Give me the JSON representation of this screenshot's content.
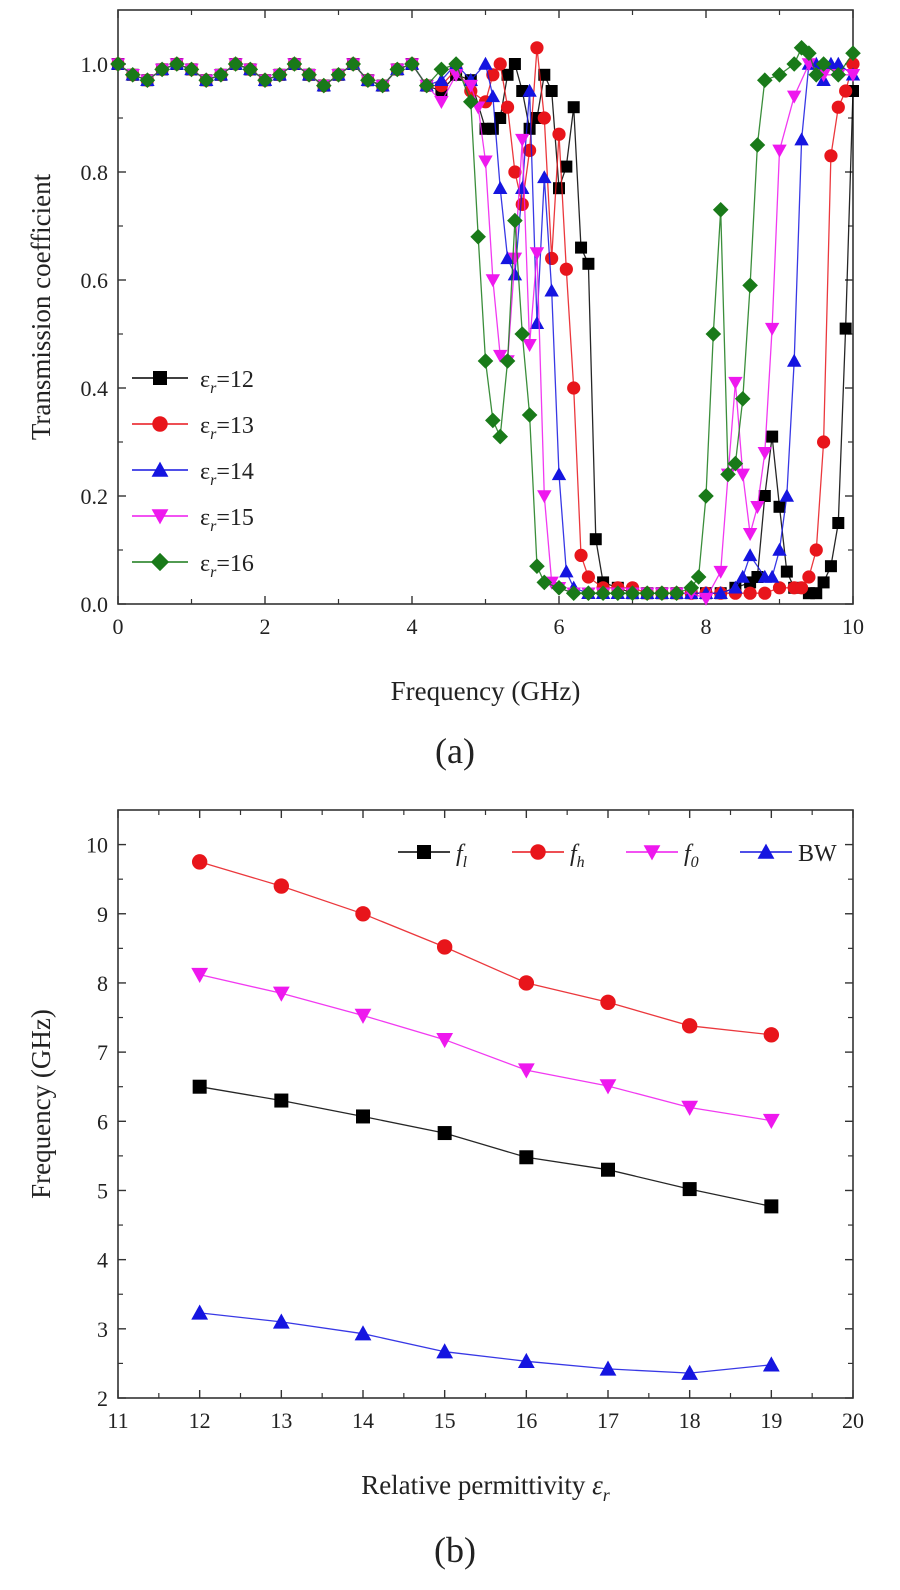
{
  "chart_data": [
    {
      "type": "line",
      "panel_label": "(a)",
      "xlabel": "Frequency (GHz)",
      "ylabel": "Transmission coefficient",
      "xlim": [
        0,
        10
      ],
      "ylim": [
        0,
        1.1
      ],
      "xticks": [
        0,
        2,
        4,
        6,
        8,
        10
      ],
      "yticks": [
        0.0,
        0.2,
        0.4,
        0.6,
        0.8,
        1.0
      ],
      "xtick_labels": [
        "0",
        "2",
        "4",
        "6",
        "8",
        "10"
      ],
      "ytick_labels": [
        "0.0",
        "0.2",
        "0.4",
        "0.6",
        "0.8",
        "1.0"
      ],
      "grid": false,
      "legend_position": "lower-left",
      "series": [
        {
          "name": "εr=12",
          "name_base": "ε",
          "name_sub": "r",
          "name_rest": "=12",
          "color": "#000000",
          "marker": "square",
          "x": [
            0,
            0.2,
            0.4,
            0.6,
            0.8,
            1.0,
            1.2,
            1.4,
            1.6,
            1.8,
            2.0,
            2.2,
            2.4,
            2.6,
            2.8,
            3.0,
            3.2,
            3.4,
            3.6,
            3.8,
            4.0,
            4.2,
            4.4,
            4.6,
            4.8,
            5.0,
            5.1,
            5.2,
            5.3,
            5.4,
            5.5,
            5.6,
            5.7,
            5.8,
            5.9,
            6.0,
            6.1,
            6.2,
            6.3,
            6.4,
            6.5,
            6.6,
            6.8,
            7.0,
            7.2,
            7.4,
            7.6,
            7.8,
            8.0,
            8.2,
            8.4,
            8.6,
            8.7,
            8.8,
            8.9,
            9.0,
            9.1,
            9.2,
            9.4,
            9.5,
            9.6,
            9.7,
            9.8,
            9.9,
            10.0
          ],
          "y": [
            1.0,
            0.98,
            0.97,
            0.99,
            1.0,
            0.99,
            0.97,
            0.98,
            1.0,
            0.99,
            0.97,
            0.98,
            1.0,
            0.98,
            0.96,
            0.98,
            1.0,
            0.97,
            0.96,
            0.99,
            1.0,
            0.96,
            0.95,
            0.98,
            0.97,
            0.88,
            0.88,
            0.9,
            0.98,
            1.0,
            0.95,
            0.88,
            0.9,
            0.98,
            0.95,
            0.77,
            0.81,
            0.92,
            0.66,
            0.63,
            0.12,
            0.04,
            0.03,
            0.02,
            0.02,
            0.02,
            0.02,
            0.02,
            0.02,
            0.02,
            0.03,
            0.04,
            0.05,
            0.2,
            0.31,
            0.18,
            0.06,
            0.03,
            0.02,
            0.02,
            0.04,
            0.07,
            0.15,
            0.51,
            0.95
          ]
        },
        {
          "name": "εr=13",
          "name_base": "ε",
          "name_sub": "r",
          "name_rest": "=13",
          "color": "#e8151b",
          "marker": "circle",
          "x": [
            0,
            0.2,
            0.4,
            0.6,
            0.8,
            1.0,
            1.2,
            1.4,
            1.6,
            1.8,
            2.0,
            2.2,
            2.4,
            2.6,
            2.8,
            3.0,
            3.2,
            3.4,
            3.6,
            3.8,
            4.0,
            4.2,
            4.4,
            4.6,
            4.8,
            5.0,
            5.1,
            5.2,
            5.3,
            5.4,
            5.5,
            5.6,
            5.7,
            5.8,
            5.9,
            6.0,
            6.1,
            6.2,
            6.3,
            6.4,
            6.6,
            6.8,
            7.0,
            7.2,
            7.4,
            7.6,
            7.8,
            8.0,
            8.2,
            8.4,
            8.6,
            8.8,
            9.0,
            9.2,
            9.3,
            9.4,
            9.5,
            9.6,
            9.7,
            9.8,
            9.9,
            10.0
          ],
          "y": [
            1.0,
            0.98,
            0.97,
            0.99,
            1.0,
            0.99,
            0.97,
            0.98,
            1.0,
            0.99,
            0.97,
            0.98,
            1.0,
            0.98,
            0.96,
            0.98,
            1.0,
            0.97,
            0.96,
            0.99,
            1.0,
            0.96,
            0.96,
            0.99,
            0.95,
            0.93,
            0.98,
            1.0,
            0.92,
            0.8,
            0.74,
            0.84,
            1.03,
            0.9,
            0.64,
            0.87,
            0.62,
            0.4,
            0.09,
            0.05,
            0.03,
            0.03,
            0.03,
            0.02,
            0.02,
            0.02,
            0.02,
            0.02,
            0.02,
            0.02,
            0.02,
            0.02,
            0.03,
            0.03,
            0.03,
            0.05,
            0.1,
            0.3,
            0.83,
            0.92,
            0.95,
            1.0
          ]
        },
        {
          "name": "εr=14",
          "name_base": "ε",
          "name_sub": "r",
          "name_rest": "=14",
          "color": "#1515e0",
          "marker": "triangle-up",
          "x": [
            0,
            0.2,
            0.4,
            0.6,
            0.8,
            1.0,
            1.2,
            1.4,
            1.6,
            1.8,
            2.0,
            2.2,
            2.4,
            2.6,
            2.8,
            3.0,
            3.2,
            3.4,
            3.6,
            3.8,
            4.0,
            4.2,
            4.4,
            4.6,
            4.8,
            5.0,
            5.1,
            5.2,
            5.3,
            5.4,
            5.5,
            5.6,
            5.7,
            5.8,
            5.9,
            6.0,
            6.1,
            6.2,
            6.4,
            6.6,
            6.8,
            7.0,
            7.2,
            7.4,
            7.6,
            7.8,
            8.0,
            8.2,
            8.4,
            8.5,
            8.6,
            8.8,
            8.9,
            9.0,
            9.1,
            9.2,
            9.3,
            9.4,
            9.5,
            9.6,
            9.7,
            9.8,
            10.0
          ],
          "y": [
            1.0,
            0.98,
            0.97,
            0.99,
            1.0,
            0.99,
            0.97,
            0.98,
            1.0,
            0.99,
            0.97,
            0.98,
            1.0,
            0.98,
            0.96,
            0.98,
            1.0,
            0.97,
            0.96,
            0.99,
            1.0,
            0.96,
            0.97,
            1.0,
            0.97,
            1.0,
            0.94,
            0.77,
            0.64,
            0.61,
            0.77,
            0.95,
            0.52,
            0.79,
            0.58,
            0.24,
            0.06,
            0.03,
            0.02,
            0.02,
            0.02,
            0.02,
            0.02,
            0.02,
            0.02,
            0.02,
            0.02,
            0.02,
            0.03,
            0.05,
            0.09,
            0.05,
            0.05,
            0.1,
            0.2,
            0.45,
            0.86,
            1.0,
            1.0,
            0.97,
            1.0,
            1.0,
            0.98
          ]
        },
        {
          "name": "εr=15",
          "name_base": "ε",
          "name_sub": "r",
          "name_rest": "=15",
          "color": "#ee18ee",
          "marker": "triangle-down",
          "x": [
            0,
            0.2,
            0.4,
            0.6,
            0.8,
            1.0,
            1.2,
            1.4,
            1.6,
            1.8,
            2.0,
            2.2,
            2.4,
            2.6,
            2.8,
            3.0,
            3.2,
            3.4,
            3.6,
            3.8,
            4.0,
            4.2,
            4.4,
            4.6,
            4.8,
            4.9,
            5.0,
            5.1,
            5.2,
            5.3,
            5.4,
            5.5,
            5.6,
            5.7,
            5.8,
            5.9,
            6.0,
            6.2,
            6.4,
            6.6,
            6.8,
            7.0,
            7.2,
            7.4,
            7.6,
            7.8,
            8.0,
            8.2,
            8.3,
            8.4,
            8.5,
            8.6,
            8.7,
            8.8,
            8.9,
            9.0,
            9.2,
            9.4,
            9.6,
            9.8,
            10.0
          ],
          "y": [
            1.0,
            0.98,
            0.97,
            0.99,
            1.0,
            0.99,
            0.97,
            0.98,
            1.0,
            0.99,
            0.97,
            0.98,
            1.0,
            0.98,
            0.96,
            0.98,
            1.0,
            0.97,
            0.96,
            0.99,
            1.0,
            0.96,
            0.93,
            0.98,
            0.96,
            0.92,
            0.82,
            0.6,
            0.46,
            0.45,
            0.64,
            0.86,
            0.48,
            0.65,
            0.2,
            0.04,
            0.03,
            0.02,
            0.02,
            0.02,
            0.02,
            0.02,
            0.02,
            0.02,
            0.02,
            0.02,
            0.01,
            0.06,
            0.24,
            0.41,
            0.24,
            0.13,
            0.18,
            0.28,
            0.51,
            0.84,
            0.94,
            1.0,
            0.98,
            0.98,
            0.98
          ]
        },
        {
          "name": "εr=16",
          "name_base": "ε",
          "name_sub": "r",
          "name_rest": "=16",
          "color": "#197a19",
          "marker": "diamond",
          "x": [
            0,
            0.2,
            0.4,
            0.6,
            0.8,
            1.0,
            1.2,
            1.4,
            1.6,
            1.8,
            2.0,
            2.2,
            2.4,
            2.6,
            2.8,
            3.0,
            3.2,
            3.4,
            3.6,
            3.8,
            4.0,
            4.2,
            4.4,
            4.6,
            4.8,
            4.9,
            5.0,
            5.1,
            5.2,
            5.3,
            5.4,
            5.5,
            5.6,
            5.7,
            5.8,
            6.0,
            6.2,
            6.4,
            6.6,
            6.8,
            7.0,
            7.2,
            7.4,
            7.6,
            7.8,
            7.9,
            8.0,
            8.1,
            8.2,
            8.3,
            8.4,
            8.5,
            8.6,
            8.7,
            8.8,
            9.0,
            9.2,
            9.3,
            9.4,
            9.5,
            9.6,
            9.8,
            10.0
          ],
          "y": [
            1.0,
            0.98,
            0.97,
            0.99,
            1.0,
            0.99,
            0.97,
            0.98,
            1.0,
            0.99,
            0.97,
            0.98,
            1.0,
            0.98,
            0.96,
            0.98,
            1.0,
            0.97,
            0.96,
            0.99,
            1.0,
            0.96,
            0.99,
            1.0,
            0.93,
            0.68,
            0.45,
            0.34,
            0.31,
            0.45,
            0.71,
            0.5,
            0.35,
            0.07,
            0.04,
            0.03,
            0.02,
            0.02,
            0.02,
            0.02,
            0.02,
            0.02,
            0.02,
            0.02,
            0.03,
            0.05,
            0.2,
            0.5,
            0.73,
            0.24,
            0.26,
            0.38,
            0.59,
            0.85,
            0.97,
            0.98,
            1.0,
            1.03,
            1.02,
            0.98,
            1.0,
            0.98,
            1.02
          ]
        }
      ]
    },
    {
      "type": "line",
      "panel_label": "(b)",
      "xlabel_main": "Relative permittivity ",
      "xlabel_symbol": "ε",
      "xlabel_sub": "r",
      "ylabel": "Frequency (GHz)",
      "xlim": [
        11,
        20
      ],
      "ylim": [
        2,
        10.5
      ],
      "xticks": [
        11,
        12,
        13,
        14,
        15,
        16,
        17,
        18,
        19,
        20
      ],
      "yticks": [
        2,
        3,
        4,
        5,
        6,
        7,
        8,
        9,
        10
      ],
      "xtick_labels": [
        "11",
        "12",
        "13",
        "14",
        "15",
        "16",
        "17",
        "18",
        "19",
        "20"
      ],
      "ytick_labels": [
        "2",
        "3",
        "4",
        "5",
        "6",
        "7",
        "8",
        "9",
        "10"
      ],
      "grid": false,
      "legend_position": "top-right",
      "x": [
        12,
        13,
        14,
        15,
        16,
        17,
        18,
        19
      ],
      "series": [
        {
          "name": "fl",
          "name_base": "f",
          "name_sub": "l",
          "color": "#000000",
          "marker": "square",
          "values": [
            6.5,
            6.3,
            6.07,
            5.83,
            5.48,
            5.3,
            5.02,
            4.77
          ]
        },
        {
          "name": "fh",
          "name_base": "f",
          "name_sub": "h",
          "color": "#e8151b",
          "marker": "circle",
          "values": [
            9.75,
            9.4,
            9.0,
            8.52,
            8.0,
            7.72,
            7.38,
            7.25
          ]
        },
        {
          "name": "f0",
          "name_base": "f",
          "name_sub": "0",
          "color": "#ee18ee",
          "marker": "triangle-down",
          "values": [
            8.12,
            7.85,
            7.53,
            7.18,
            6.74,
            6.51,
            6.2,
            6.01
          ]
        },
        {
          "name": "BW",
          "name_base": "BW",
          "name_sub": "",
          "color": "#1515e0",
          "marker": "triangle-up",
          "values": [
            3.23,
            3.1,
            2.93,
            2.67,
            2.53,
            2.42,
            2.36,
            2.48
          ]
        }
      ]
    }
  ]
}
